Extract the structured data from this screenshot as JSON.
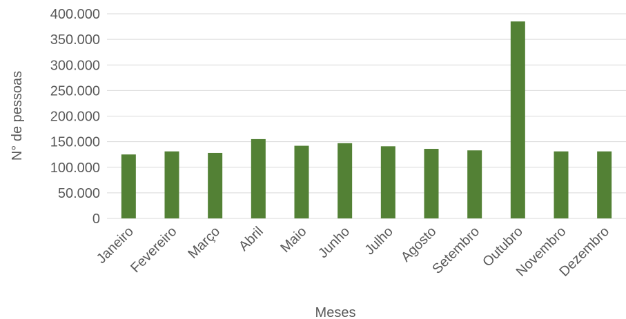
{
  "chart_data": {
    "type": "bar",
    "title": "",
    "xlabel": "Meses",
    "ylabel": "N° de pessoas",
    "ylim": [
      0,
      400000
    ],
    "yticks": [
      {
        "value": 0,
        "label": "0"
      },
      {
        "value": 50000,
        "label": "50.000"
      },
      {
        "value": 100000,
        "label": "100.000"
      },
      {
        "value": 150000,
        "label": "150.000"
      },
      {
        "value": 200000,
        "label": "200.000"
      },
      {
        "value": 250000,
        "label": "250.000"
      },
      {
        "value": 300000,
        "label": "300.000"
      },
      {
        "value": 350000,
        "label": "350.000"
      },
      {
        "value": 400000,
        "label": "400.000"
      }
    ],
    "categories": [
      "Janeiro",
      "Fevereiro",
      "Março",
      "Abril",
      "Maio",
      "Junho",
      "Julho",
      "Agosto",
      "Setembro",
      "Outubro",
      "Novembro",
      "Dezembro"
    ],
    "values": [
      125000,
      131000,
      128000,
      155000,
      142000,
      147000,
      141000,
      136000,
      133000,
      385000,
      131000,
      131000
    ],
    "grid": true,
    "legend": "none",
    "bar_color": "#538135",
    "grid_color": "#d9d9d9",
    "text_color": "#595959"
  }
}
